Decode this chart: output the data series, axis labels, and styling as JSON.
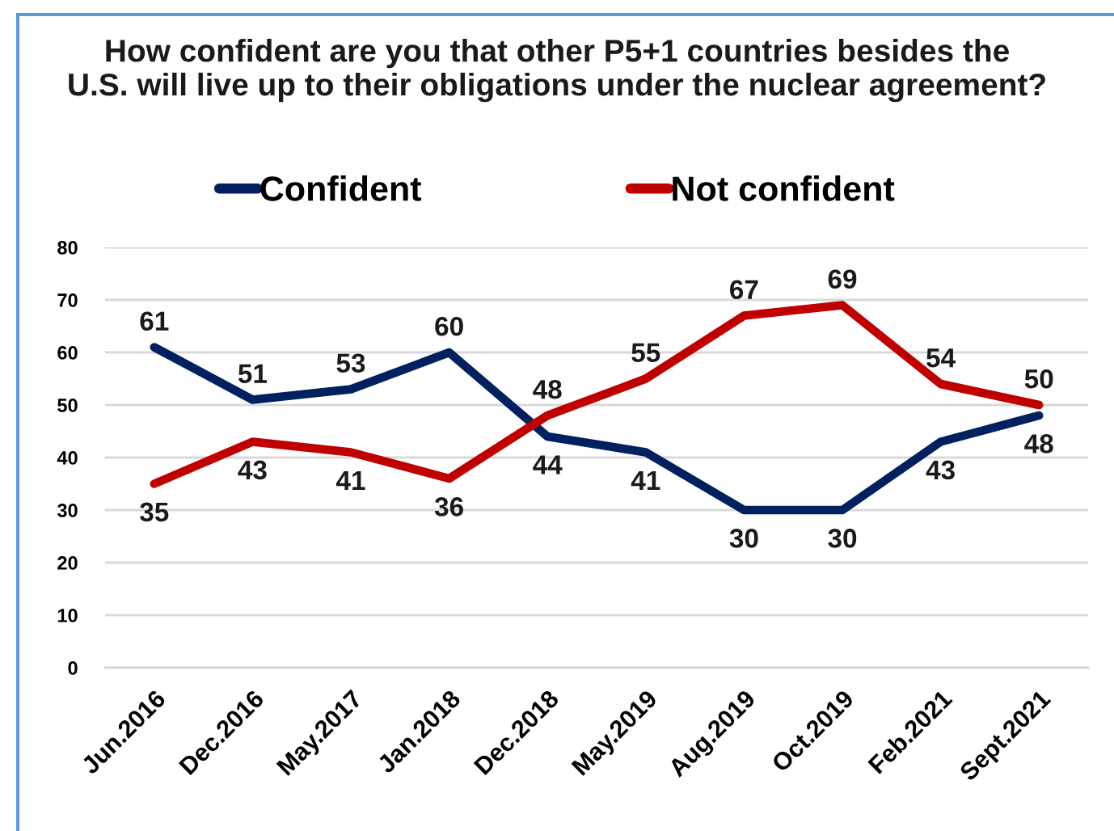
{
  "chart_data": {
    "type": "line",
    "title": "How confident are you that other P5+1 countries besides the\nU.S. will live up to their obligations under the nuclear agreement?",
    "categories": [
      "Jun.2016",
      "Dec.2016",
      "May.2017",
      "Jan.2018",
      "Dec.2018",
      "May.2019",
      "Aug.2019",
      "Oct.2019",
      "Feb.2021",
      "Sept.2021"
    ],
    "series": [
      {
        "name": "Confident",
        "color": "#002060",
        "values": [
          61,
          51,
          53,
          60,
          44,
          41,
          30,
          30,
          43,
          48
        ]
      },
      {
        "name": "Not confident",
        "color": "#c00000",
        "values": [
          35,
          43,
          41,
          36,
          48,
          55,
          67,
          69,
          54,
          50
        ]
      }
    ],
    "ylim": [
      0,
      80
    ],
    "yticks": [
      0,
      10,
      20,
      30,
      40,
      50,
      60,
      70,
      80
    ],
    "grid": "y",
    "legend": "top",
    "data_labels": true
  }
}
